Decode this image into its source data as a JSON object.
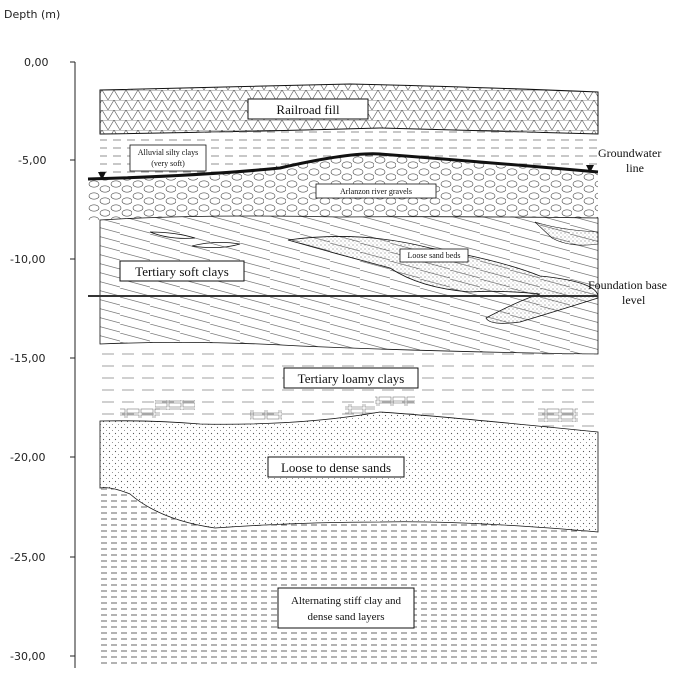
{
  "axis": {
    "title": "Depth  (m)",
    "ticks": [
      "0,00",
      "-5,00",
      "-10,00",
      "-15,00",
      "-20,00",
      "-25,00",
      "-30,00"
    ]
  },
  "labels": {
    "railroad_fill": "Railroad fill",
    "alluvial_line1": "Alluvial silty clays",
    "alluvial_line2": "(very soft)",
    "river_gravels": "Arlanzon river gravels",
    "loose_sand_beds": "Loose sand beds",
    "tertiary_soft_clays": "Tertiary soft clays",
    "tertiary_loamy_clays": "Tertiary loamy clays",
    "loose_dense_sands": "Loose to dense sands",
    "alternating_line1": "Alternating stiff clay and",
    "alternating_line2": "dense sand layers",
    "groundwater_line1": "Groundwater",
    "groundwater_line2": "line",
    "foundation_line1": "Foundation base",
    "foundation_line2": "level"
  },
  "colors": {
    "line": "#111111",
    "hatch": "#555555",
    "background": "#ffffff"
  }
}
